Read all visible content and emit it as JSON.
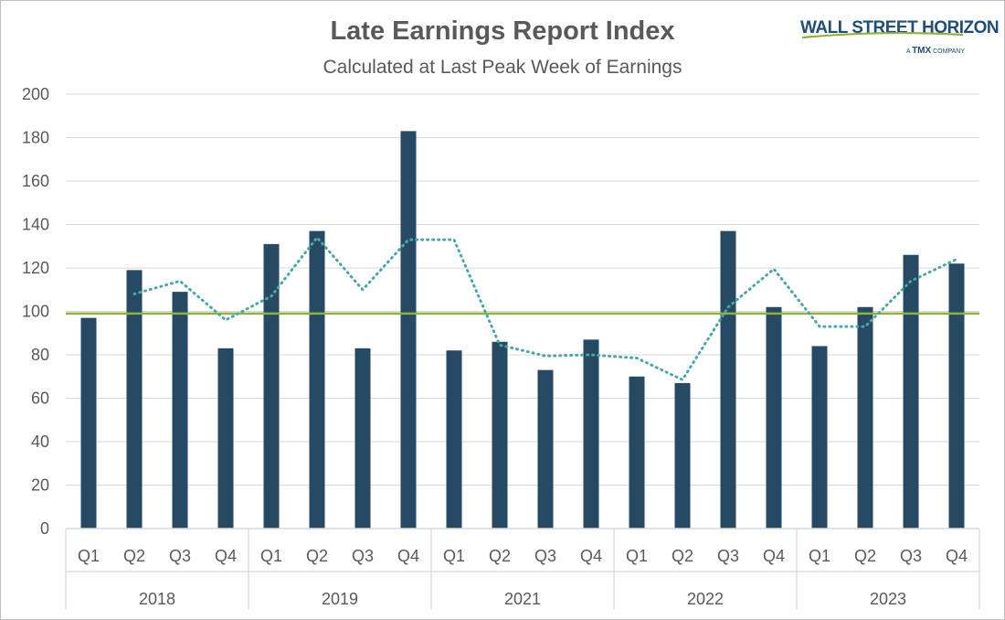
{
  "header": {
    "title": "Late Earnings Report Index",
    "subtitle": "Calculated at Last Peak Week of Earnings"
  },
  "logo": {
    "name": "WALL STREET HORIZON",
    "tagline_prefix": "A",
    "tagline_brand": "TMX",
    "tagline_suffix": "COMPANY"
  },
  "colors": {
    "bar": "#264a63",
    "moving_avg": "#4aa7a7",
    "reference_line": "#8db33a",
    "grid": "#d9d9d9",
    "axis_text": "#595959"
  },
  "chart_data": {
    "type": "bar",
    "title": "Late Earnings Report Index",
    "subtitle": "Calculated at Last Peak Week of Earnings",
    "xlabel": "",
    "ylabel": "",
    "ylim": [
      0,
      200
    ],
    "yticks": [
      0,
      20,
      40,
      60,
      80,
      100,
      120,
      140,
      160,
      180,
      200
    ],
    "grid": true,
    "legend": "none",
    "groups": [
      {
        "label": "2018",
        "quarters": [
          "Q1",
          "Q2",
          "Q3",
          "Q4"
        ]
      },
      {
        "label": "2019",
        "quarters": [
          "Q1",
          "Q2",
          "Q3",
          "Q4"
        ]
      },
      {
        "label": "2021",
        "quarters": [
          "Q1",
          "Q2",
          "Q3",
          "Q4"
        ]
      },
      {
        "label": "2022",
        "quarters": [
          "Q1",
          "Q2",
          "Q3",
          "Q4"
        ]
      },
      {
        "label": "2023",
        "quarters": [
          "Q1",
          "Q2",
          "Q3",
          "Q4"
        ]
      }
    ],
    "series": [
      {
        "style": "bar",
        "values": [
          97,
          119,
          109,
          83,
          131,
          137,
          83,
          183,
          82,
          86,
          73,
          87,
          70,
          67,
          137,
          102,
          84,
          102,
          126,
          122
        ]
      },
      {
        "style": "dotted-line",
        "values": [
          null,
          108,
          114,
          96,
          107,
          134,
          110,
          133,
          133,
          84.5,
          79.5,
          80,
          78.5,
          68.5,
          102,
          119.5,
          93,
          93,
          114,
          124
        ]
      }
    ],
    "reference_line": {
      "value": 99
    }
  }
}
